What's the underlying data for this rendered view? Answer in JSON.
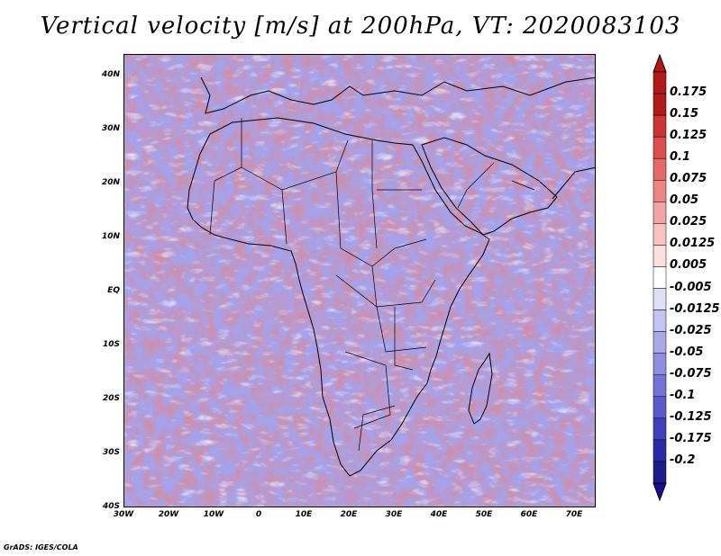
{
  "title": "Vertical velocity [m/s] at 200hPa, VT: 2020083103",
  "credit": "GrADS: IGES/COLA",
  "map": {
    "lon_range": [
      -30,
      75
    ],
    "lat_range": [
      -40,
      45
    ],
    "lat_labels": [
      "40N",
      "30N",
      "20N",
      "10N",
      "EQ",
      "10S",
      "20S",
      "30S",
      "40S"
    ],
    "lon_labels": [
      "30W",
      "20W",
      "10W",
      "0",
      "10E",
      "20E",
      "30E",
      "40E",
      "50E",
      "60E",
      "70E"
    ],
    "features": [
      "africa-coastline",
      "arabian-peninsula",
      "madagascar",
      "europe-coast",
      "country-borders"
    ]
  },
  "colorbar": {
    "labels": [
      "0.175",
      "0.15",
      "0.125",
      "0.1",
      "0.075",
      "0.05",
      "0.025",
      "0.0125",
      "0.005",
      "-0.005",
      "-0.0125",
      "-0.025",
      "-0.05",
      "-0.075",
      "-0.1",
      "-0.125",
      "-0.175",
      "-0.2"
    ],
    "colors": [
      "#b21a1a",
      "#cc3333",
      "#dc4f4f",
      "#e76868",
      "#ee8585",
      "#f3a3a3",
      "#f8c2c2",
      "#fcdede",
      "#ffffff",
      "#dedef9",
      "#c4c4f2",
      "#a9a9ea",
      "#8f8fe2",
      "#7373d8",
      "#5a5acd",
      "#4040bd",
      "#2a2aa6",
      "#1c1c8c"
    ],
    "top_color": "#b71414",
    "bottom_color": "#1a0a96"
  }
}
